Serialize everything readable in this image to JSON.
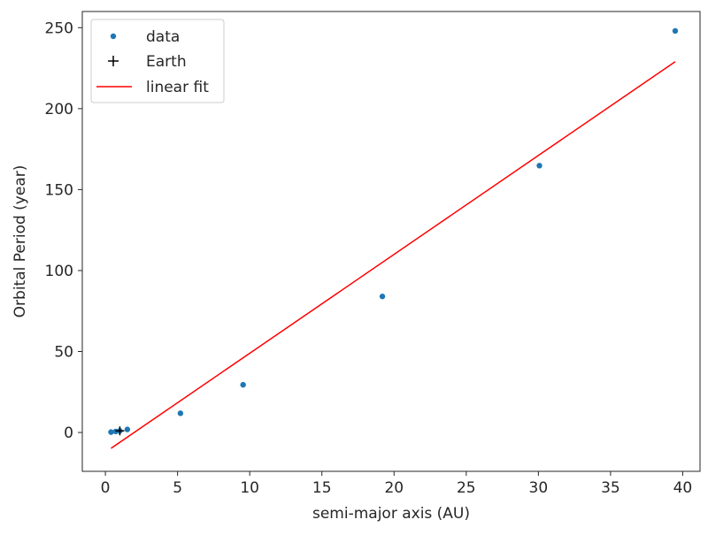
{
  "chart_data": {
    "type": "scatter",
    "xlabel": "semi-major axis (AU)",
    "ylabel": "Orbital Period (year)",
    "xlim": [
      -1.6,
      41.2
    ],
    "ylim": [
      -24,
      260
    ],
    "xticks": [
      0,
      5,
      10,
      15,
      20,
      25,
      30,
      35,
      40
    ],
    "yticks": [
      0,
      50,
      100,
      150,
      200,
      250
    ],
    "grid": false,
    "legend_position": "top-left",
    "series": [
      {
        "name": "data",
        "kind": "points",
        "color": "#1f77b4",
        "x": [
          0.39,
          0.72,
          1.0,
          1.52,
          5.2,
          9.54,
          19.19,
          30.07,
          39.48
        ],
        "y": [
          0.24,
          0.62,
          1.0,
          1.88,
          11.86,
          29.46,
          84.01,
          164.8,
          248.0
        ]
      },
      {
        "name": "Earth",
        "kind": "plus-marker",
        "color": "#000000",
        "x": [
          1.0
        ],
        "y": [
          1.0
        ]
      },
      {
        "name": "linear fit",
        "kind": "line",
        "color": "#ff0000",
        "x": [
          0.39,
          39.48
        ],
        "y": [
          -9.8,
          229.0
        ]
      }
    ]
  }
}
